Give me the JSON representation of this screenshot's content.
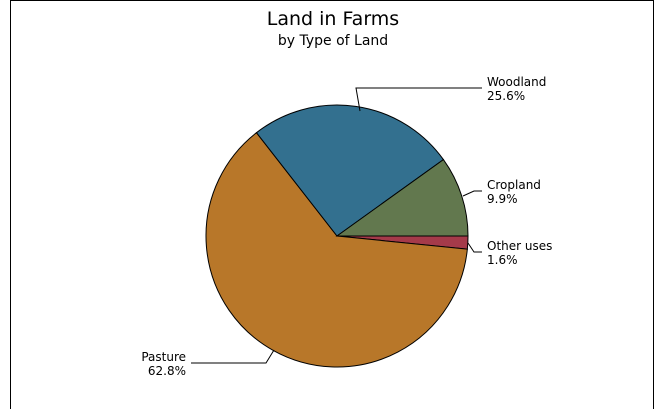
{
  "chart_data": {
    "type": "pie",
    "title": "Land in Farms",
    "subtitle": "by Type of Land",
    "slices": [
      {
        "label": "Woodland",
        "percent_label": "25.6%",
        "value": 25.6,
        "color": "#33708f"
      },
      {
        "label": "Cropland",
        "percent_label": "9.9%",
        "value": 9.9,
        "color": "#62784e"
      },
      {
        "label": "Other uses",
        "percent_label": "1.6%",
        "value": 1.6,
        "color": "#a53a4a"
      },
      {
        "label": "Pasture",
        "percent_label": "62.8%",
        "value": 62.8,
        "color": "#b87729"
      }
    ]
  }
}
